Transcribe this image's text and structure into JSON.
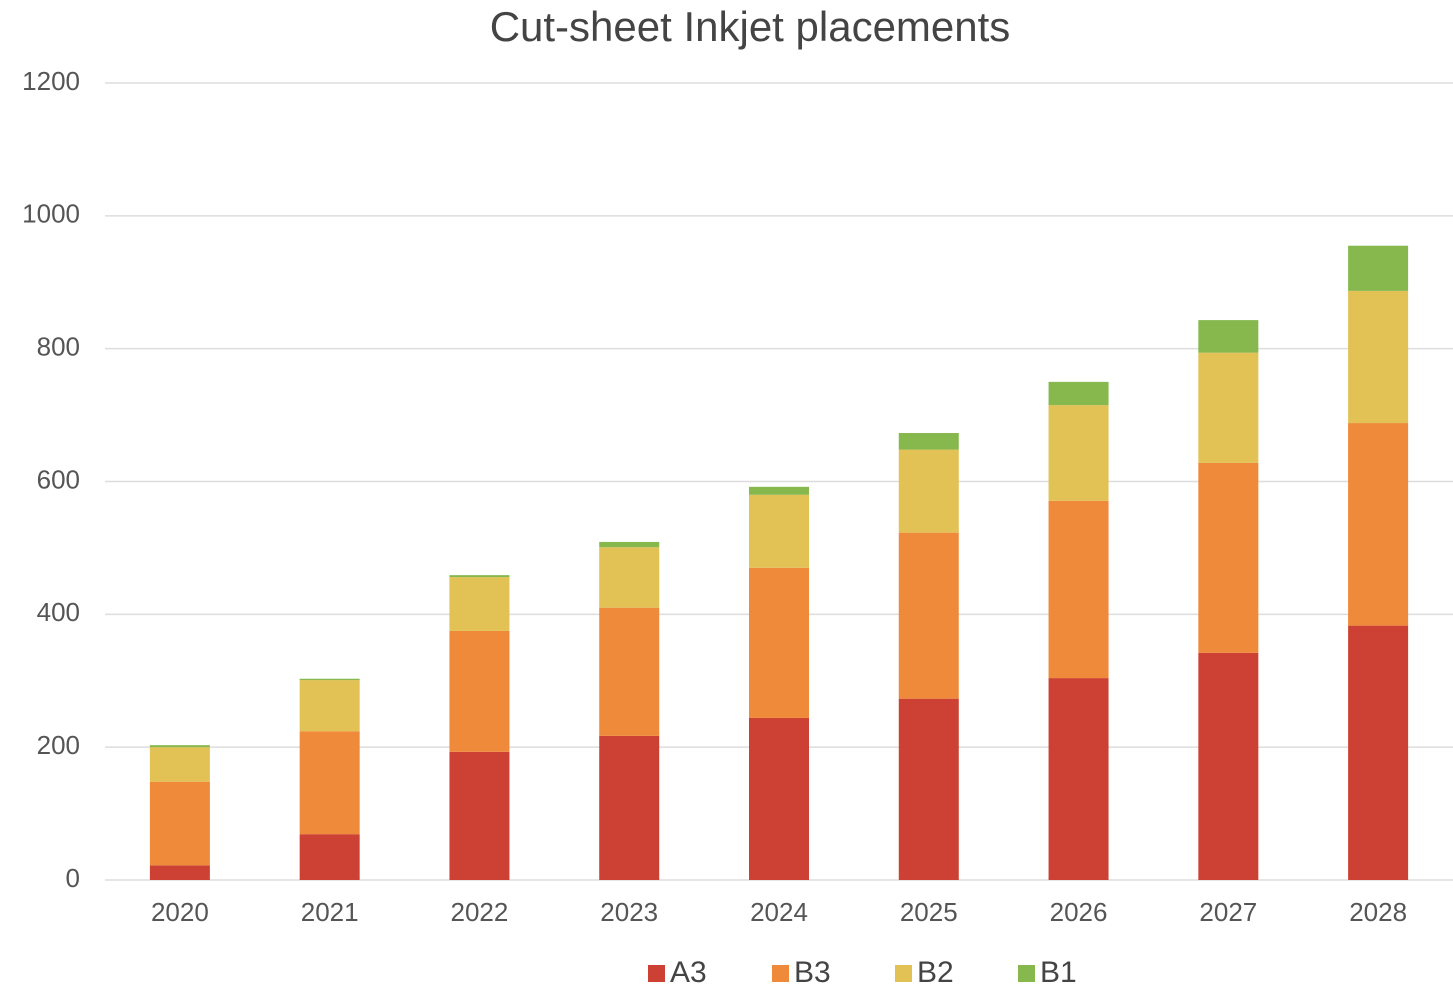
{
  "chart_data": {
    "type": "stacked_bar",
    "title": "Cut-sheet Inkjet placements",
    "categories": [
      "2020",
      "2021",
      "2022",
      "2023",
      "2024",
      "2025",
      "2026",
      "2027",
      "2028"
    ],
    "series": [
      {
        "name": "A3",
        "color": "#cc4133",
        "values": [
          22,
          69,
          193,
          217,
          244,
          273,
          304,
          342,
          383
        ]
      },
      {
        "name": "B3",
        "color": "#ee8a3a",
        "values": [
          126,
          155,
          182,
          193,
          226,
          250,
          267,
          286,
          305
        ]
      },
      {
        "name": "B2",
        "color": "#e2c155",
        "values": [
          52,
          77,
          81,
          91,
          110,
          125,
          144,
          166,
          199
        ]
      },
      {
        "name": "B1",
        "color": "#86b84e",
        "values": [
          3,
          2,
          3,
          8,
          12,
          25,
          35,
          49,
          68
        ]
      }
    ],
    "ylim": [
      0,
      1200
    ],
    "yticks": [
      0,
      200,
      400,
      600,
      800,
      1000,
      1200
    ],
    "grid": true,
    "legend": "bottom"
  }
}
